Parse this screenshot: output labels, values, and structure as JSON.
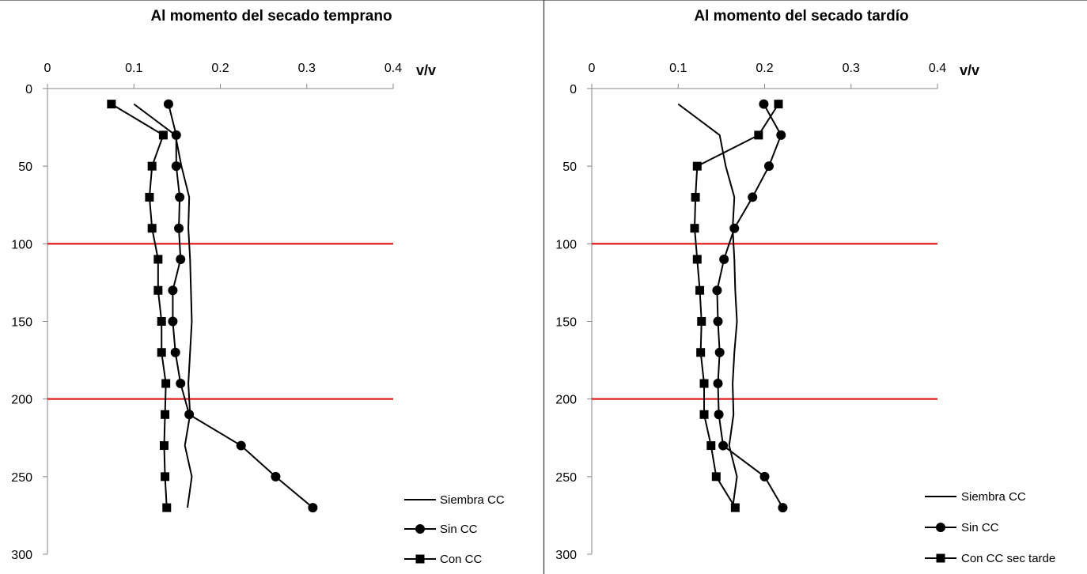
{
  "chart_data": [
    {
      "type": "line",
      "title": "Al momento del secado temprano",
      "x_unit_label": "v/v",
      "x_axis_position": "top",
      "y_axis_inverted": true,
      "xlim": [
        0,
        0.4
      ],
      "ylim": [
        0,
        300
      ],
      "x_ticks": [
        "0",
        "0.1",
        "0.2",
        "0.3",
        "0.4"
      ],
      "y_ticks": [
        "0",
        "50",
        "100",
        "150",
        "200",
        "250",
        "300"
      ],
      "x_tick_values": [
        0,
        0.1,
        0.2,
        0.3,
        0.4
      ],
      "y_tick_values": [
        0,
        50,
        100,
        150,
        200,
        250,
        300
      ],
      "reference_lines": [
        {
          "depth": 100,
          "color": "#e00000"
        },
        {
          "depth": 200,
          "color": "#e00000"
        }
      ],
      "depths": [
        10,
        30,
        50,
        70,
        90,
        110,
        130,
        150,
        170,
        190,
        210,
        230,
        250,
        270
      ],
      "series": [
        {
          "name": "Siembra CC",
          "marker": "none",
          "values": [
            0.1,
            0.148,
            0.155,
            0.164,
            0.163,
            0.165,
            0.166,
            0.167,
            0.165,
            0.163,
            0.165,
            0.159,
            0.167,
            0.162
          ]
        },
        {
          "name": "Sin CC",
          "marker": "circle",
          "values": [
            0.14,
            0.149,
            0.149,
            0.153,
            0.152,
            0.154,
            0.145,
            0.145,
            0.148,
            0.154,
            0.164,
            0.224,
            0.264,
            0.307
          ]
        },
        {
          "name": "Con CC",
          "marker": "square",
          "values": [
            0.074,
            0.134,
            0.121,
            0.118,
            0.121,
            0.128,
            0.128,
            0.132,
            0.132,
            0.137,
            0.136,
            0.135,
            0.136,
            0.138
          ]
        }
      ],
      "legend_position": "bottom-right"
    },
    {
      "type": "line",
      "title": "Al momento del secado tardío",
      "x_unit_label": "v/v",
      "x_axis_position": "top",
      "y_axis_inverted": true,
      "xlim": [
        0,
        0.4
      ],
      "ylim": [
        0,
        300
      ],
      "x_ticks": [
        "0",
        "0.1",
        "0.2",
        "0.3",
        "0.4"
      ],
      "y_ticks": [
        "0",
        "50",
        "100",
        "150",
        "200",
        "250",
        "300"
      ],
      "x_tick_values": [
        0,
        0.1,
        0.2,
        0.3,
        0.4
      ],
      "y_tick_values": [
        0,
        50,
        100,
        150,
        200,
        250,
        300
      ],
      "reference_lines": [
        {
          "depth": 100,
          "color": "#e00000"
        },
        {
          "depth": 200,
          "color": "#e00000"
        }
      ],
      "depths": [
        10,
        30,
        50,
        70,
        90,
        110,
        130,
        150,
        170,
        190,
        210,
        230,
        250,
        270
      ],
      "series": [
        {
          "name": "Siembra CC",
          "marker": "none",
          "values": [
            0.1,
            0.148,
            0.155,
            0.165,
            0.163,
            0.165,
            0.166,
            0.168,
            0.165,
            0.163,
            0.164,
            0.159,
            0.168,
            0.163
          ]
        },
        {
          "name": "Sin CC",
          "marker": "circle",
          "values": [
            0.199,
            0.219,
            0.205,
            0.186,
            0.165,
            0.153,
            0.145,
            0.146,
            0.148,
            0.146,
            0.147,
            0.152,
            0.2,
            0.221
          ]
        },
        {
          "name": "Con CC sec tarde",
          "marker": "square",
          "values": [
            0.216,
            0.193,
            0.122,
            0.12,
            0.119,
            0.122,
            0.125,
            0.127,
            0.126,
            0.13,
            0.13,
            0.138,
            0.144,
            0.166
          ]
        }
      ],
      "legend_position": "bottom-right"
    }
  ]
}
